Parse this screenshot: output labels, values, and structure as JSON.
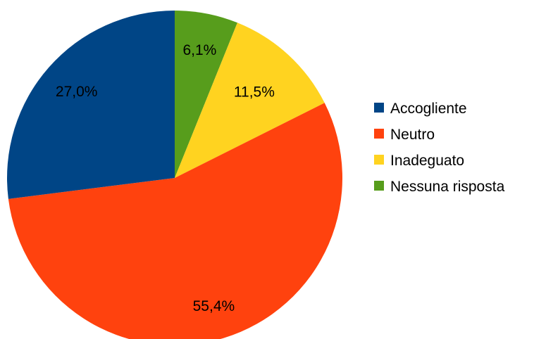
{
  "chart_data": {
    "type": "pie",
    "start_angle_deg": 0,
    "direction": "clockwise",
    "legend_position": "right",
    "slices": [
      {
        "label": "Nessuna risposta",
        "value": 6.1,
        "display": "6,1%",
        "color": "#579d1c"
      },
      {
        "label": "Inadeguato",
        "value": 11.5,
        "display": "11,5%",
        "color": "#ffd320"
      },
      {
        "label": "Neutro",
        "value": 55.4,
        "display": "55,4%",
        "color": "#ff420e"
      },
      {
        "label": "Accogliente",
        "value": 27.0,
        "display": "27,0%",
        "color": "#004586"
      }
    ],
    "legend": [
      {
        "label": "Accogliente",
        "color": "#004586"
      },
      {
        "label": "Neutro",
        "color": "#ff420e"
      },
      {
        "label": "Inadeguato",
        "color": "#ffd320"
      },
      {
        "label": "Nessuna risposta",
        "color": "#579d1c"
      }
    ]
  }
}
